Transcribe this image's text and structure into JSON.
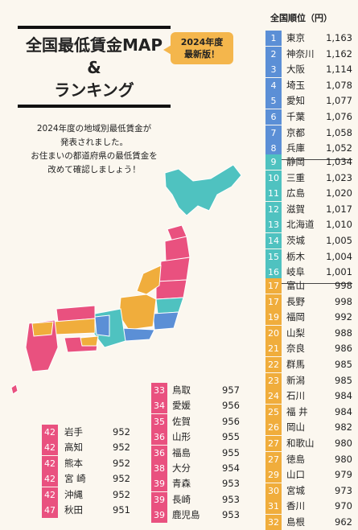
{
  "title": {
    "line1": "全国最低賃金MAP",
    "line2": "&",
    "line3": "ランキング"
  },
  "badge": {
    "line1": "2024年度",
    "line2": "最新版！"
  },
  "intro": {
    "line1": "2024年度の地域別最低賃金が",
    "line2": "発表されました。",
    "line3": "お住まいの都道府県の最低賃金を",
    "line4": "改めて確認しましょう！"
  },
  "ranking_header": "全国順位（円）",
  "colors": {
    "tier1": "#5b8fd6",
    "tier2": "#4fc2c0",
    "tier3": "#f0ad3c",
    "tier4": "#e9517f",
    "map_blue": "#5b8fd6",
    "map_teal": "#4fc2c0",
    "map_orange": "#f0ad3c",
    "map_pink": "#e9517f"
  },
  "ranking_right": [
    {
      "rank": "1",
      "pref": "東京",
      "wage": "1,163"
    },
    {
      "rank": "2",
      "pref": "神奈川",
      "wage": "1,162"
    },
    {
      "rank": "3",
      "pref": "大阪",
      "wage": "1,114"
    },
    {
      "rank": "4",
      "pref": "埼玉",
      "wage": "1,078"
    },
    {
      "rank": "5",
      "pref": "愛知",
      "wage": "1,077"
    },
    {
      "rank": "6",
      "pref": "千葉",
      "wage": "1,076"
    },
    {
      "rank": "7",
      "pref": "京都",
      "wage": "1,058"
    },
    {
      "rank": "8",
      "pref": "兵庫",
      "wage": "1,052"
    },
    {
      "rank": "9",
      "pref": "静岡",
      "wage": "1,034"
    },
    {
      "rank": "10",
      "pref": "三重",
      "wage": "1,023"
    },
    {
      "rank": "11",
      "pref": "広島",
      "wage": "1,020"
    },
    {
      "rank": "12",
      "pref": "滋賀",
      "wage": "1,017"
    },
    {
      "rank": "13",
      "pref": "北海道",
      "wage": "1,010"
    },
    {
      "rank": "14",
      "pref": "茨城",
      "wage": "1,005"
    },
    {
      "rank": "15",
      "pref": "栃木",
      "wage": "1,004"
    },
    {
      "rank": "16",
      "pref": "岐阜",
      "wage": "1,001"
    },
    {
      "rank": "17",
      "pref": "富山",
      "wage": "998"
    },
    {
      "rank": "17",
      "pref": "長野",
      "wage": "998"
    },
    {
      "rank": "19",
      "pref": "福岡",
      "wage": "992"
    },
    {
      "rank": "20",
      "pref": "山梨",
      "wage": "988"
    },
    {
      "rank": "21",
      "pref": "奈良",
      "wage": "986"
    },
    {
      "rank": "22",
      "pref": "群馬",
      "wage": "985"
    },
    {
      "rank": "23",
      "pref": "新潟",
      "wage": "985"
    },
    {
      "rank": "24",
      "pref": "石川",
      "wage": "984"
    },
    {
      "rank": "25",
      "pref": "福 井",
      "wage": "984"
    },
    {
      "rank": "26",
      "pref": "岡山",
      "wage": "982"
    },
    {
      "rank": "27",
      "pref": "和歌山",
      "wage": "980"
    },
    {
      "rank": "27",
      "pref": "徳島",
      "wage": "980"
    },
    {
      "rank": "29",
      "pref": "山口",
      "wage": "979"
    },
    {
      "rank": "30",
      "pref": "宮城",
      "wage": "973"
    },
    {
      "rank": "31",
      "pref": "香川",
      "wage": "970"
    },
    {
      "rank": "32",
      "pref": "島根",
      "wage": "962"
    }
  ],
  "ranking_mid": [
    {
      "rank": "33",
      "pref": "鳥取",
      "wage": "957"
    },
    {
      "rank": "34",
      "pref": "愛媛",
      "wage": "956"
    },
    {
      "rank": "35",
      "pref": "佐賀",
      "wage": "956"
    },
    {
      "rank": "36",
      "pref": "山形",
      "wage": "955"
    },
    {
      "rank": "36",
      "pref": "福島",
      "wage": "955"
    },
    {
      "rank": "38",
      "pref": "大分",
      "wage": "954"
    },
    {
      "rank": "39",
      "pref": "青森",
      "wage": "953"
    },
    {
      "rank": "39",
      "pref": "長崎",
      "wage": "953"
    },
    {
      "rank": "39",
      "pref": "鹿児島",
      "wage": "953"
    }
  ],
  "ranking_left": [
    {
      "rank": "42",
      "pref": "岩手",
      "wage": "952"
    },
    {
      "rank": "42",
      "pref": "高知",
      "wage": "952"
    },
    {
      "rank": "42",
      "pref": "熊本",
      "wage": "952"
    },
    {
      "rank": "42",
      "pref": "宮 崎",
      "wage": "952"
    },
    {
      "rank": "42",
      "pref": "沖縄",
      "wage": "952"
    },
    {
      "rank": "47",
      "pref": "秋田",
      "wage": "951"
    }
  ]
}
